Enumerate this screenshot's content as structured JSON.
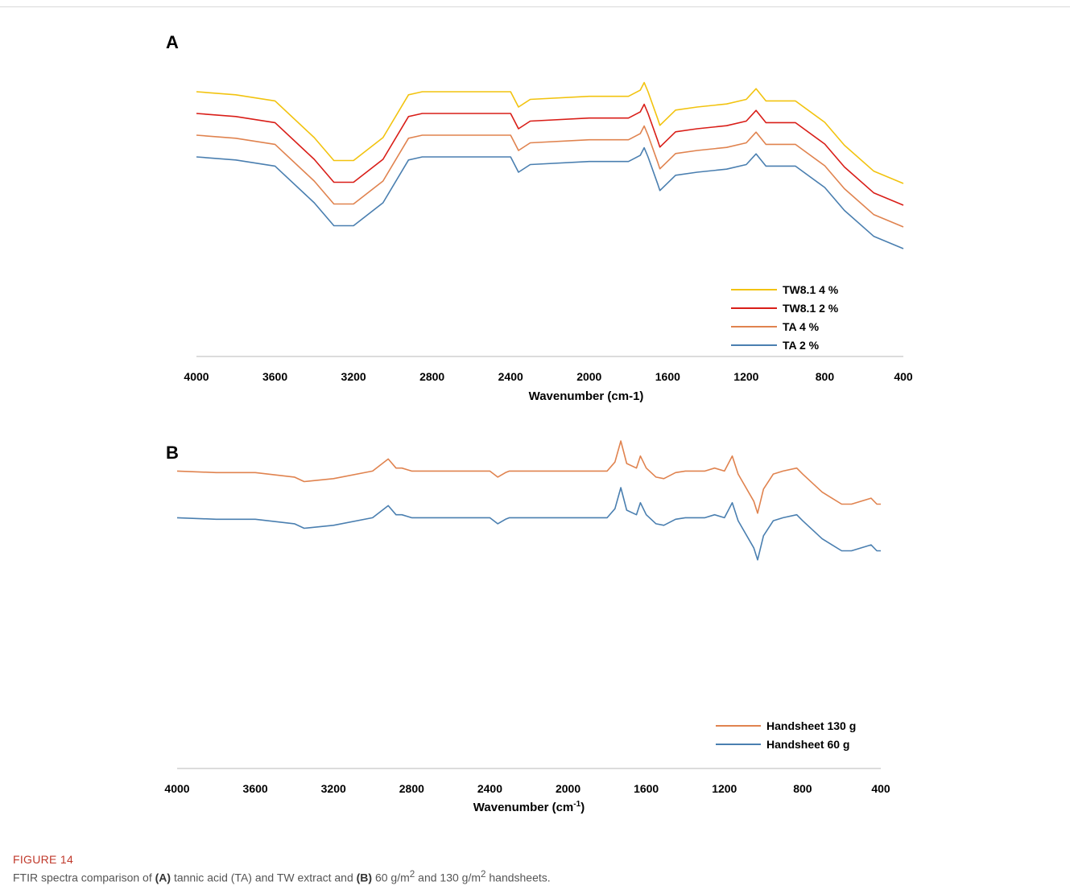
{
  "figure": {
    "label": "FIGURE 14",
    "caption_parts": {
      "p1": "FTIR spectra comparison of ",
      "a": "(A)",
      "p2": " tannic acid (TA) and TW extract and ",
      "b": "(B)",
      "p3": " 60 g/m",
      "sup1": "2",
      "p4": " and 130 g/m",
      "sup2": "2",
      "p5": " handsheets."
    }
  },
  "chart_data": [
    {
      "panel": "A",
      "type": "line",
      "xlabel": "Wavenumber (cm-1)",
      "xlim": [
        4000,
        400
      ],
      "x_reversed": true,
      "xticks": [
        4000,
        3600,
        3200,
        2800,
        2400,
        2000,
        1600,
        1200,
        800,
        400
      ],
      "yaxis_visible": false,
      "legend_position": "bottom-right",
      "series": [
        {
          "name": "TW8.1 4 %",
          "color": "#f2c30f",
          "offset": 0,
          "x": [
            4000,
            3800,
            3600,
            3400,
            3300,
            3200,
            3050,
            2920,
            2850,
            2750,
            2400,
            2360,
            2300,
            2000,
            1800,
            1740,
            1720,
            1700,
            1650,
            1640,
            1560,
            1450,
            1300,
            1200,
            1150,
            1100,
            950,
            800,
            700,
            550,
            400
          ],
          "y": [
            90,
            88,
            84,
            60,
            45,
            45,
            60,
            88,
            90,
            90,
            90,
            80,
            85,
            87,
            87,
            91,
            96,
            90,
            72,
            68,
            78,
            80,
            82,
            85,
            92,
            84,
            84,
            70,
            55,
            38,
            30
          ]
        },
        {
          "name": "TW8.1 2 %",
          "color": "#d91e18",
          "offset": 1,
          "x": [
            4000,
            3800,
            3600,
            3400,
            3300,
            3200,
            3050,
            2920,
            2850,
            2750,
            2400,
            2360,
            2300,
            2000,
            1800,
            1740,
            1720,
            1700,
            1650,
            1640,
            1560,
            1450,
            1300,
            1200,
            1150,
            1100,
            950,
            800,
            700,
            550,
            400
          ],
          "y": [
            90,
            88,
            84,
            60,
            45,
            45,
            60,
            88,
            90,
            90,
            90,
            80,
            85,
            87,
            87,
            91,
            96,
            90,
            72,
            68,
            78,
            80,
            82,
            85,
            92,
            84,
            84,
            70,
            55,
            38,
            30
          ]
        },
        {
          "name": "TA 4 %",
          "color": "#e0834f",
          "offset": 2,
          "x": [
            4000,
            3800,
            3600,
            3400,
            3300,
            3200,
            3050,
            2920,
            2850,
            2750,
            2400,
            2360,
            2300,
            2000,
            1800,
            1740,
            1720,
            1700,
            1650,
            1640,
            1560,
            1450,
            1300,
            1200,
            1150,
            1100,
            950,
            800,
            700,
            550,
            400
          ],
          "y": [
            90,
            88,
            84,
            60,
            45,
            45,
            60,
            88,
            90,
            90,
            90,
            80,
            85,
            87,
            87,
            91,
            96,
            90,
            72,
            68,
            78,
            80,
            82,
            85,
            92,
            84,
            84,
            70,
            55,
            38,
            30
          ]
        },
        {
          "name": "TA 2 %",
          "color": "#4a7fb0",
          "offset": 3,
          "x": [
            4000,
            3800,
            3600,
            3400,
            3300,
            3200,
            3050,
            2920,
            2850,
            2750,
            2400,
            2360,
            2300,
            2000,
            1800,
            1740,
            1720,
            1700,
            1650,
            1640,
            1560,
            1450,
            1300,
            1200,
            1150,
            1100,
            950,
            800,
            700,
            550,
            400
          ],
          "y": [
            90,
            88,
            84,
            60,
            45,
            45,
            60,
            88,
            90,
            90,
            90,
            80,
            85,
            87,
            87,
            91,
            96,
            90,
            72,
            68,
            78,
            80,
            82,
            85,
            92,
            84,
            84,
            70,
            55,
            38,
            30
          ]
        }
      ]
    },
    {
      "panel": "B",
      "type": "line",
      "xlabel_main": "Wavenumber (cm",
      "xlabel_sup": "-1",
      "xlabel_end": ")",
      "xlim": [
        4000,
        400
      ],
      "x_reversed": true,
      "xticks": [
        4000,
        3600,
        3200,
        2800,
        2400,
        2000,
        1600,
        1200,
        800,
        400
      ],
      "yaxis_visible": false,
      "legend_position": "bottom-right",
      "series": [
        {
          "name": "Handsheet 130 g",
          "color": "#e0834f",
          "offset": 0,
          "x": [
            4000,
            3800,
            3600,
            3400,
            3350,
            3200,
            3000,
            2920,
            2880,
            2850,
            2800,
            2400,
            2360,
            2320,
            2300,
            1800,
            1760,
            1730,
            1700,
            1650,
            1630,
            1600,
            1550,
            1510,
            1450,
            1400,
            1300,
            1250,
            1200,
            1160,
            1130,
            1050,
            1030,
            1000,
            950,
            900,
            830,
            800,
            700,
            650,
            600,
            550,
            450,
            420,
            400
          ],
          "y": [
            80,
            79,
            79,
            76,
            73,
            75,
            80,
            88,
            82,
            82,
            80,
            80,
            76,
            79,
            80,
            80,
            86,
            100,
            85,
            82,
            90,
            82,
            76,
            75,
            79,
            80,
            80,
            82,
            80,
            90,
            78,
            60,
            52,
            68,
            78,
            80,
            82,
            78,
            66,
            62,
            58,
            58,
            62,
            58,
            58
          ]
        },
        {
          "name": "Handsheet 60 g",
          "color": "#4a7fb0",
          "offset": 1,
          "x": [
            4000,
            3800,
            3600,
            3400,
            3350,
            3200,
            3000,
            2920,
            2880,
            2850,
            2800,
            2400,
            2360,
            2320,
            2300,
            1800,
            1760,
            1730,
            1700,
            1650,
            1630,
            1600,
            1550,
            1510,
            1450,
            1400,
            1300,
            1250,
            1200,
            1160,
            1130,
            1050,
            1030,
            1000,
            950,
            900,
            830,
            800,
            700,
            650,
            600,
            550,
            450,
            420,
            400
          ],
          "y": [
            80,
            79,
            79,
            76,
            73,
            75,
            80,
            88,
            82,
            82,
            80,
            80,
            76,
            79,
            80,
            80,
            86,
            100,
            85,
            82,
            90,
            82,
            76,
            75,
            79,
            80,
            80,
            82,
            80,
            90,
            78,
            60,
            52,
            68,
            78,
            80,
            82,
            78,
            66,
            62,
            58,
            58,
            62,
            58,
            58
          ]
        }
      ]
    }
  ]
}
